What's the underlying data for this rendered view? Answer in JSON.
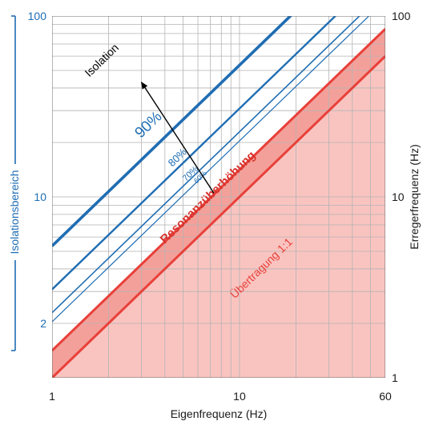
{
  "chart_data": {
    "type": "line",
    "title": "",
    "xlabel": "Eigenfrequenz (Hz)",
    "ylabel_right": "Erregerfrequenz (Hz)",
    "ylabel_left": "Isolationsbereich",
    "x_scale": "log",
    "y_scale": "log",
    "xlim": [
      1,
      60
    ],
    "ylim": [
      1,
      100
    ],
    "x_ticks": [
      "1",
      "10",
      "60"
    ],
    "y_ticks_left": [
      "2",
      "10",
      "100"
    ],
    "y_ticks_right": [
      "1",
      "10",
      "100"
    ],
    "grid": true,
    "colors": {
      "isolation": "#1f6db3",
      "resonance": "#e8403a",
      "resonance_fill": "#f4a09a",
      "transfer_fill": "#f9c4c0",
      "grid": "#b3b3b3",
      "arrow": "#000000"
    },
    "series": [
      {
        "label": "90%",
        "ratio": 5.35,
        "label_x": 3.4,
        "label_y": 24,
        "label_size": 19,
        "stroke_width": 3.6
      },
      {
        "label": "80%",
        "ratio": 3.08,
        "label_x": 4.8,
        "label_y": 16,
        "label_size": 13,
        "stroke_width": 2.4
      },
      {
        "label": "70%",
        "ratio": 2.29,
        "label_x": 5.6,
        "label_y": 13.1,
        "label_size": 11,
        "stroke_width": 1.6
      },
      {
        "label": "60%",
        "ratio": 2.04,
        "label_x": 6.3,
        "label_y": 12.6,
        "label_size": 9,
        "stroke_width": 1.2
      }
    ],
    "resonance_band": {
      "lower_ratio": 1.0,
      "upper_ratio": 1.414,
      "label": "Resonanzüberhöhung",
      "label_x": 7.0,
      "label_y": 9.6,
      "label_size": 15
    },
    "transfer_line": {
      "ratio": 1.0,
      "label": "Übertragung 1:1",
      "label_x": 13.5,
      "label_y": 3.9,
      "label_size": 14
    },
    "isolation_arrow": {
      "label": "Isolation",
      "label_x": 1.9,
      "label_y": 55,
      "from": [
        7.3,
        10.5
      ],
      "to": [
        3.0,
        43
      ],
      "label_size": 14
    }
  }
}
